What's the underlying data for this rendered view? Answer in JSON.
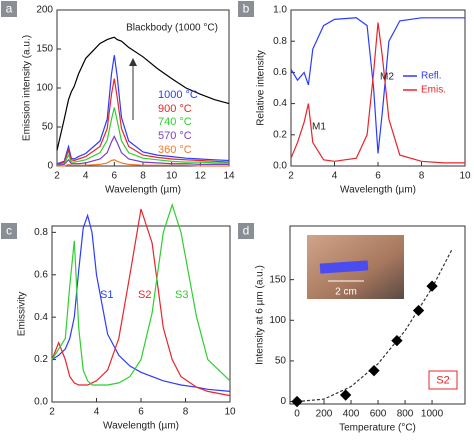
{
  "chart_data": [
    {
      "type": "line",
      "panel": "a",
      "xlabel": "Wavelength (µm)",
      "ylabel": "Emission intensity (a.u.)",
      "xlim": [
        2,
        14
      ],
      "xticks": [
        2,
        4,
        6,
        8,
        10,
        12,
        14
      ],
      "ylim": [
        0,
        200
      ],
      "yticks": [
        0,
        50,
        100,
        150,
        200
      ],
      "x": [
        2,
        2.5,
        2.8,
        3,
        3.2,
        3.5,
        4,
        5,
        5.5,
        5.8,
        6,
        6.2,
        6.5,
        7,
        8,
        9,
        10,
        11,
        12,
        13,
        14
      ],
      "series": [
        {
          "name": "Blackbody (1000 °C)",
          "color": "#000000",
          "values": [
            20,
            60,
            85,
            95,
            102,
            118,
            138,
            157,
            162,
            164,
            165,
            162,
            160,
            152,
            140,
            125,
            112,
            100,
            92,
            85,
            80
          ]
        },
        {
          "name": "1000 °C",
          "color": "#2b3bff",
          "values": [
            3,
            6,
            25,
            10,
            9,
            12,
            16,
            32,
            60,
            118,
            142,
            115,
            62,
            32,
            18,
            14,
            12,
            10,
            9,
            8,
            7
          ]
        },
        {
          "name": "900 °C",
          "color": "#e8242a",
          "values": [
            2,
            5,
            20,
            8,
            7,
            9,
            12,
            25,
            48,
            92,
            112,
            88,
            48,
            25,
            14,
            11,
            9,
            8,
            7,
            6,
            5
          ]
        },
        {
          "name": "740 °C",
          "color": "#2fcf2f",
          "values": [
            1,
            3,
            14,
            5,
            5,
            6,
            8,
            17,
            33,
            60,
            75,
            58,
            32,
            17,
            10,
            8,
            6,
            5,
            5,
            4,
            4
          ]
        },
        {
          "name": "570 °C",
          "color": "#7a3fc8",
          "values": [
            1,
            2,
            8,
            3,
            3,
            3,
            4,
            9,
            17,
            31,
            38,
            30,
            17,
            9,
            5,
            4,
            3,
            3,
            2,
            2,
            2
          ]
        },
        {
          "name": "360 °C",
          "color": "#f07a2a",
          "values": [
            0,
            0,
            2,
            1,
            1,
            1,
            1,
            2,
            4,
            7,
            8,
            6,
            4,
            2,
            1,
            1,
            1,
            1,
            0,
            0,
            0
          ]
        }
      ]
    },
    {
      "type": "line",
      "panel": "b",
      "xlabel": "Wavelength (µm)",
      "ylabel": "Relative intensity",
      "legend": "right",
      "xlim": [
        2,
        10
      ],
      "xticks": [
        2,
        4,
        6,
        8,
        10
      ],
      "ylim": [
        0,
        1
      ],
      "yticks": [
        {
          "value": 0,
          "label": "0.0"
        },
        0.2,
        0.4,
        0.6,
        0.8,
        {
          "value": 1,
          "label": "1.0"
        }
      ],
      "annotations": [
        "M1",
        "M2"
      ],
      "x": [
        2,
        2.3,
        2.6,
        2.8,
        3,
        3.5,
        4,
        5,
        5.5,
        5.8,
        6,
        6.2,
        6.5,
        7,
        8,
        9,
        10
      ],
      "series": [
        {
          "name": "Refl.",
          "color": "#2b3bff",
          "values": [
            0.62,
            0.55,
            0.6,
            0.52,
            0.75,
            0.9,
            0.94,
            0.95,
            0.9,
            0.5,
            0.08,
            0.35,
            0.8,
            0.93,
            0.95,
            0.95,
            0.95
          ]
        },
        {
          "name": "Emis.",
          "color": "#e8242a",
          "values": [
            0.05,
            0.15,
            0.28,
            0.4,
            0.15,
            0.04,
            0.03,
            0.05,
            0.2,
            0.6,
            0.92,
            0.7,
            0.3,
            0.07,
            0.03,
            0.02,
            0.02
          ]
        }
      ]
    },
    {
      "type": "line",
      "panel": "c",
      "xlabel": "Wavelength (µm)",
      "ylabel": "Emissivity",
      "xlim": [
        2,
        10
      ],
      "xticks": [
        2,
        4,
        6,
        8,
        10
      ],
      "ylim": [
        0,
        0.83
      ],
      "yticks": [
        {
          "value": 0,
          "label": "0.0"
        },
        0.2,
        0.4,
        0.6,
        0.8
      ],
      "x": [
        2,
        2.3,
        2.6,
        2.8,
        3,
        3.2,
        3.4,
        3.6,
        3.8,
        4,
        4.5,
        5,
        5.5,
        6,
        6.5,
        7,
        7.4,
        7.8,
        8.5,
        9,
        10
      ],
      "series": [
        {
          "name": "S1",
          "color": "#2b3bff",
          "values": [
            0.2,
            0.22,
            0.25,
            0.3,
            0.4,
            0.62,
            0.82,
            0.88,
            0.8,
            0.6,
            0.32,
            0.22,
            0.17,
            0.14,
            0.12,
            0.1,
            0.09,
            0.08,
            0.07,
            0.06,
            0.05
          ]
        },
        {
          "name": "S2",
          "color": "#e8242a",
          "values": [
            0.2,
            0.28,
            0.2,
            0.12,
            0.09,
            0.08,
            0.08,
            0.08,
            0.09,
            0.1,
            0.15,
            0.3,
            0.6,
            0.91,
            0.75,
            0.35,
            0.2,
            0.12,
            0.07,
            0.05,
            0.03
          ]
        },
        {
          "name": "S3",
          "color": "#2fcf2f",
          "values": [
            0.2,
            0.25,
            0.3,
            0.55,
            0.76,
            0.35,
            0.15,
            0.1,
            0.08,
            0.08,
            0.08,
            0.09,
            0.12,
            0.2,
            0.42,
            0.8,
            0.93,
            0.8,
            0.4,
            0.2,
            0.1
          ]
        }
      ]
    },
    {
      "type": "scatter",
      "panel": "d",
      "xlabel": "Temperature (°C)",
      "ylabel": "Intensity at 6 µm (a.u.)",
      "xlim": [
        -52,
        1244
      ],
      "xticks": [
        0,
        200,
        400,
        600,
        800,
        1000
      ],
      "ylim": [
        -3,
        216
      ],
      "yticks": [
        0,
        50,
        100,
        150
      ],
      "annotations": [
        "2 cm",
        "S2"
      ],
      "x": [
        0,
        360,
        570,
        740,
        900,
        1000
      ],
      "values": [
        0,
        8,
        38,
        75,
        112,
        142
      ],
      "color": "#000000",
      "fit": {
        "x": [
          0,
          200,
          400,
          600,
          800,
          1000,
          1150
        ],
        "values": [
          0,
          3,
          18.4,
          46.4,
          87,
          140,
          188
        ]
      }
    }
  ]
}
